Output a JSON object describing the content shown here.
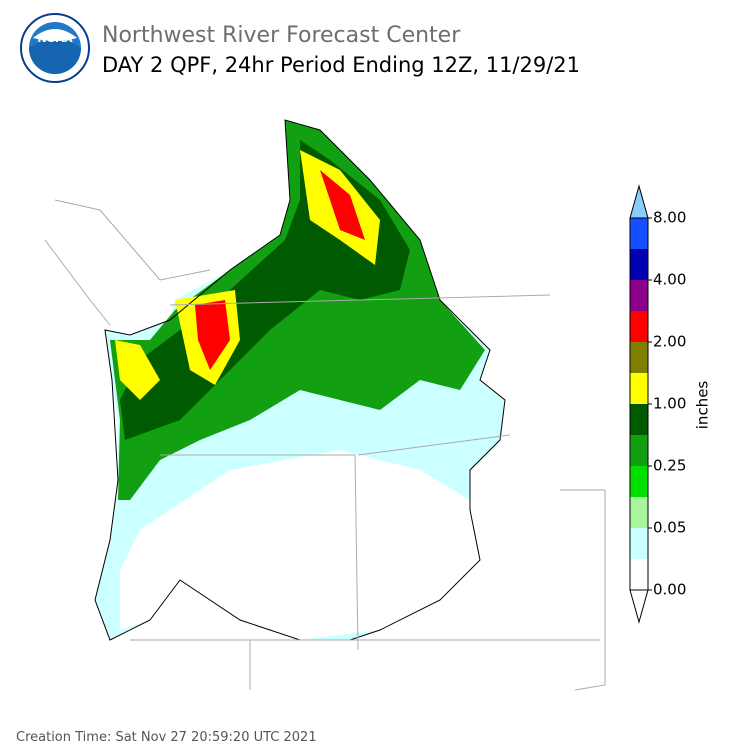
{
  "header": {
    "org": "Northwest River Forecast Center",
    "title": "DAY 2 QPF, 24hr Period Ending 12Z, 11/29/21",
    "logo": "NOAA"
  },
  "colorbar": {
    "label": "inches",
    "ticks": [
      {
        "value": 0,
        "label": "0.00"
      },
      {
        "value": 0.05,
        "label": "0.05"
      },
      {
        "value": 0.25,
        "label": "0.25"
      },
      {
        "value": 1,
        "label": "1.00"
      },
      {
        "value": 2,
        "label": "2.00"
      },
      {
        "value": 4,
        "label": "4.00"
      },
      {
        "value": 8,
        "label": "8.00"
      }
    ],
    "colors": [
      "#ffffff",
      "#ccffff",
      "#a8f59c",
      "#00e000",
      "#12a012",
      "#005a00",
      "#ffff00",
      "#808000",
      "#ff0000",
      "#8b008b",
      "#0000b0",
      "#1450ff"
    ],
    "under_color": "#ffffff",
    "over_color": "#87cefa"
  },
  "footer": {
    "creation": "Creation Time: Sat Nov 27 20:59:20 UTC 2021"
  }
}
